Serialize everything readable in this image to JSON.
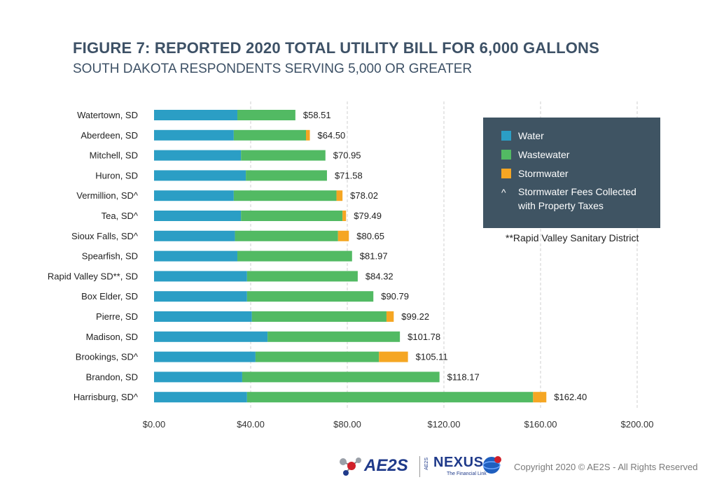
{
  "title": "FIGURE 7: REPORTED 2020 TOTAL UTILITY BILL FOR 6,000 GALLONS",
  "subtitle": "SOUTH DAKOTA RESPONDENTS SERVING 5,000 OR GREATER",
  "colors": {
    "water": "#2b9ec5",
    "wastewater": "#52ba63",
    "stormwater": "#f5a623",
    "legend_bg": "#3f5463",
    "title": "#3d5166",
    "grid": "#cfcfcf"
  },
  "legend": {
    "items": [
      {
        "label": "Water",
        "color": "#2b9ec5"
      },
      {
        "label": "Wastewater",
        "color": "#52ba63"
      },
      {
        "label": "Stormwater",
        "color": "#f5a623"
      }
    ],
    "note_symbol": "^",
    "note_text": "Stormwater Fees Collected with Property Taxes"
  },
  "footnote": "**Rapid Valley Sanitary District",
  "footer": {
    "ae2s_logo_text": "AE2S",
    "nexus_logo_text": "NEXUS",
    "nexus_side_text": "AE2S",
    "nexus_tagline": "The Financial Link",
    "copyright": "Copyright 2020 © AE2S - All Rights Reserved"
  },
  "chart_data": {
    "type": "bar",
    "orientation": "horizontal",
    "stacked": true,
    "categories": [
      "Watertown, SD",
      "Aberdeen, SD",
      "Mitchell, SD",
      "Huron, SD",
      "Vermillion, SD^",
      "Tea, SD^",
      "Sioux Falls, SD^",
      "Spearfish, SD",
      "Rapid Valley SD**, SD",
      "Box Elder, SD",
      "Pierre, SD",
      "Madison, SD",
      "Brookings, SD^",
      "Brandon, SD",
      "Harrisburg, SD^"
    ],
    "series": [
      {
        "name": "Water",
        "values": [
          34.5,
          33.0,
          36.0,
          38.0,
          33.0,
          36.0,
          33.5,
          34.5,
          38.5,
          38.5,
          40.5,
          47.0,
          42.0,
          36.5,
          38.5
        ]
      },
      {
        "name": "Wastewater",
        "values": [
          24.01,
          29.9,
          34.95,
          33.58,
          42.52,
          42.0,
          42.65,
          47.47,
          45.82,
          52.29,
          55.72,
          54.78,
          51.11,
          81.67,
          118.4
        ]
      },
      {
        "name": "Stormwater",
        "values": [
          0.0,
          1.6,
          0.0,
          0.0,
          2.5,
          1.49,
          4.5,
          0.0,
          0.0,
          0.0,
          3.0,
          0.0,
          12.0,
          0.0,
          5.5
        ]
      }
    ],
    "totals": [
      "$58.51",
      "$64.50",
      "$70.95",
      "$71.58",
      "$78.02",
      "$79.49",
      "$80.65",
      "$81.97",
      "$84.32",
      "$90.79",
      "$99.22",
      "$101.78",
      "$105.11",
      "$118.17",
      "$162.40"
    ],
    "xticks": [
      0,
      40,
      80,
      120,
      160,
      200
    ],
    "xtick_labels": [
      "$0.00",
      "$40.00",
      "$80.00",
      "$120.00",
      "$160.00",
      "$200.00"
    ],
    "xlim": [
      0,
      200
    ],
    "grid": "vertical dashed",
    "legend_placement": "top-right"
  }
}
